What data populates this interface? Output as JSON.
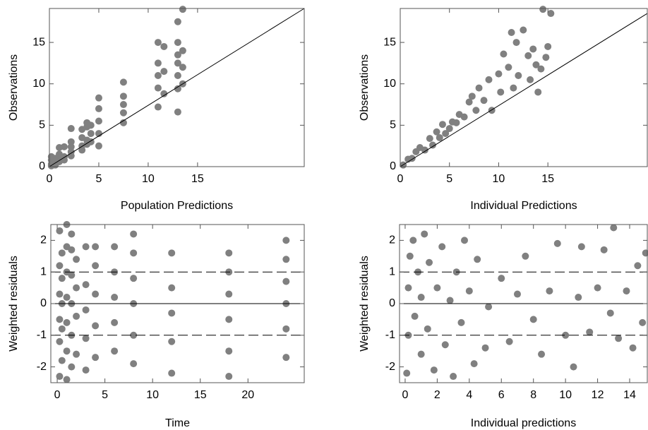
{
  "chart_data": [
    {
      "type": "scatter",
      "xlabel": "Population Predictions",
      "ylabel": "Observations",
      "color": "#808080",
      "xlim": [
        0,
        25.8
      ],
      "ylim": [
        0,
        19.1
      ],
      "xticks": [
        0,
        5,
        10,
        15
      ],
      "yticks": [
        0,
        5,
        10,
        15
      ],
      "reference_lines": [
        {
          "x": [
            0,
            25.8
          ],
          "y": [
            0,
            19.1
          ],
          "style": "solid"
        }
      ],
      "x": [
        0.2,
        0.2,
        0.2,
        0.2,
        0.6,
        0.6,
        0.6,
        1,
        1,
        1,
        1,
        1.5,
        1.5,
        1.5,
        2.2,
        2.2,
        2.2,
        2.2,
        2.2,
        3.3,
        3.3,
        3.3,
        3.3,
        3.8,
        3.8,
        3.8,
        3.8,
        4.2,
        4.2,
        4.2,
        5,
        5,
        5,
        5,
        5,
        7.5,
        7.5,
        7.5,
        7.5,
        7.5,
        11,
        11,
        11,
        11,
        11,
        11.6,
        11.6,
        11.6,
        13,
        13,
        13,
        13,
        13,
        13,
        13,
        13.5,
        13.5,
        13.5,
        13.5
      ],
      "y": [
        0.3,
        0.8,
        1.2,
        0.1,
        0.5,
        1.0,
        0.2,
        1.5,
        2.3,
        0.6,
        1.0,
        1.2,
        2.4,
        0.8,
        1.8,
        3.0,
        4.6,
        2.4,
        1.3,
        2.5,
        3.5,
        4.5,
        2.0,
        3.2,
        4.8,
        5.3,
        2.7,
        4.0,
        5.0,
        3.0,
        2.5,
        4.0,
        5.5,
        7.0,
        8.3,
        5.3,
        6.5,
        7.5,
        8.5,
        10.2,
        7.2,
        9.5,
        11,
        12.5,
        15,
        8.8,
        11.5,
        14.5,
        6.6,
        9.4,
        11,
        12.5,
        13.5,
        15,
        17.5,
        10,
        12,
        14,
        19
      ]
    },
    {
      "type": "scatter",
      "xlabel": "Individual Predictions",
      "ylabel": "Observations",
      "color": "#808080",
      "xlim": [
        0,
        25.1
      ],
      "ylim": [
        0,
        19.1
      ],
      "xticks": [
        0,
        5,
        10,
        15
      ],
      "yticks": [
        0,
        5,
        10,
        15
      ],
      "reference_lines": [
        {
          "x": [
            0,
            25.1
          ],
          "y": [
            0,
            18.5
          ],
          "style": "solid"
        }
      ],
      "x": [
        0.3,
        0.8,
        1.2,
        1.6,
        2,
        2.5,
        3,
        3.3,
        3.7,
        4,
        4.3,
        4.6,
        5,
        5.3,
        5.7,
        6,
        6.5,
        7,
        7.3,
        7.7,
        8,
        8.5,
        9,
        9.3,
        10,
        10.2,
        10.5,
        11,
        11.5,
        11.8,
        12,
        12.5,
        13,
        13.2,
        13.5,
        13.8,
        14,
        14.3,
        14.5,
        14.8,
        15.0,
        15.3,
        11.3
      ],
      "y": [
        0.2,
        0.9,
        1.0,
        1.8,
        2.3,
        2.0,
        3.4,
        2.6,
        4.2,
        3.5,
        5.1,
        4.0,
        4.6,
        5.4,
        5.3,
        6.3,
        6.0,
        7.8,
        8.5,
        6.8,
        9.5,
        8.0,
        10.5,
        6.8,
        11.2,
        9.0,
        13.6,
        12.0,
        9.5,
        15.0,
        11.0,
        16.5,
        13.4,
        10.5,
        14.2,
        12.3,
        9.0,
        11.8,
        19.0,
        13.2,
        14.5,
        18.5,
        16.2
      ]
    },
    {
      "type": "scatter",
      "xlabel": "Time",
      "ylabel": "Weighted residuals",
      "color": "#808080",
      "xlim": [
        -0.67,
        25.9
      ],
      "ylim": [
        -2.5,
        2.5
      ],
      "xticks": [
        0,
        5,
        10,
        15,
        20
      ],
      "yticks": [
        -2,
        -1,
        0,
        1,
        2
      ],
      "hlines": [
        {
          "value": 0,
          "style": "solid"
        },
        {
          "value": 1,
          "style": "dashed"
        },
        {
          "value": -1,
          "style": "dashed"
        }
      ],
      "x": [
        0.25,
        0.25,
        0.25,
        0.25,
        0.25,
        0.25,
        0.5,
        0.5,
        0.5,
        0.5,
        0.5,
        1,
        1,
        1,
        1,
        1,
        1,
        1,
        1.5,
        1.5,
        1.5,
        1.5,
        1.5,
        1.5,
        2,
        2,
        2,
        2,
        3,
        3,
        3,
        3,
        3,
        4,
        4,
        4,
        4,
        4,
        6,
        6,
        6,
        6,
        6,
        8,
        8,
        8,
        8,
        8,
        8,
        12,
        12,
        12,
        12,
        12,
        18,
        18,
        18,
        18,
        18,
        18,
        24,
        24,
        24,
        24,
        24,
        24
      ],
      "y": [
        -2.3,
        -1.2,
        -0.5,
        0.3,
        1.2,
        2.3,
        -1.8,
        -0.8,
        0,
        0.8,
        1.6,
        -2.4,
        -1.5,
        -0.6,
        0.2,
        1.0,
        1.8,
        2.5,
        -2.0,
        -1.0,
        0,
        0.9,
        1.7,
        2.2,
        -1.6,
        -0.4,
        0.5,
        1.4,
        -2.1,
        -1.1,
        -0.2,
        0.6,
        1.8,
        -1.7,
        -0.7,
        0.3,
        1.2,
        1.8,
        -1.5,
        -0.6,
        0.2,
        1.0,
        1.8,
        -1.9,
        -1.0,
        0,
        0.8,
        1.6,
        2.2,
        -2.2,
        -1.2,
        -0.3,
        0.5,
        1.6,
        -2.3,
        -1.5,
        -0.5,
        0.3,
        1.0,
        1.6,
        -1.7,
        -0.8,
        0,
        0.7,
        1.4,
        2.0
      ]
    },
    {
      "type": "scatter",
      "xlabel": "Individual predictions",
      "ylabel": "Weighted residuals",
      "color": "#808080",
      "xlim": [
        -0.35,
        15.1
      ],
      "ylim": [
        -2.5,
        2.5
      ],
      "xticks": [
        0,
        2,
        4,
        6,
        8,
        10,
        12,
        14
      ],
      "yticks": [
        -2,
        -1,
        0,
        1,
        2
      ],
      "hlines": [
        {
          "value": 0,
          "style": "solid"
        },
        {
          "value": 1,
          "style": "dashed"
        },
        {
          "value": -1,
          "style": "dashed"
        }
      ],
      "x": [
        0.1,
        0.2,
        0.2,
        0.3,
        0.5,
        0.6,
        0.8,
        1,
        1,
        1.2,
        1.4,
        1.5,
        1.8,
        2,
        2.3,
        2.5,
        2.8,
        3,
        3.2,
        3.5,
        3.7,
        4,
        4.3,
        4.5,
        5,
        5.2,
        6,
        6.5,
        7,
        7.5,
        8,
        8.5,
        9,
        9.5,
        10,
        10.5,
        10.8,
        11,
        11.5,
        12,
        12.4,
        12.8,
        13,
        13.3,
        13.8,
        14.2,
        14.5,
        14.8,
        15
      ],
      "y": [
        -2.2,
        -1.0,
        0.5,
        1.5,
        2.0,
        -0.4,
        1.0,
        -1.6,
        0.2,
        2.2,
        -0.8,
        1.3,
        -2.1,
        0.5,
        1.8,
        -1.3,
        0.1,
        -2.3,
        1.0,
        -0.6,
        2.0,
        0.4,
        -1.9,
        1.4,
        -1.4,
        -0.1,
        0.8,
        -1.2,
        0.3,
        1.5,
        -0.5,
        -1.6,
        0.4,
        1.9,
        -1.0,
        -2.0,
        0.2,
        1.8,
        -0.9,
        0.5,
        1.7,
        -0.3,
        2.4,
        -1.1,
        0.4,
        -1.4,
        1.2,
        -0.6,
        1.6
      ]
    }
  ]
}
